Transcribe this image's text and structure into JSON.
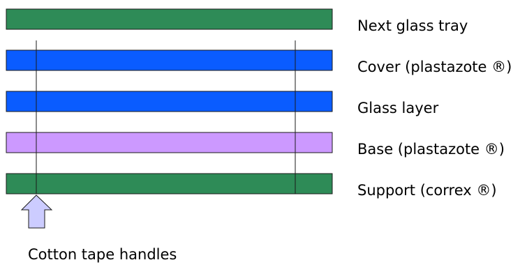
{
  "layers": [
    {
      "label": "Next glass tray",
      "color": "#2e8b57"
    },
    {
      "label": "Cover (plastazote ®)",
      "color": "#0a5cff"
    },
    {
      "label": "Glass layer",
      "color": "#0a5cff"
    },
    {
      "label": "Base (plastazote ®)",
      "color": "#cc99ff"
    },
    {
      "label": "Support (correx ®)",
      "color": "#2e8b57"
    }
  ],
  "handles": {
    "caption": "Cotton tape handles",
    "arrow_color": "#ccccff"
  },
  "colors": {
    "stroke": "#1a1a1a"
  }
}
